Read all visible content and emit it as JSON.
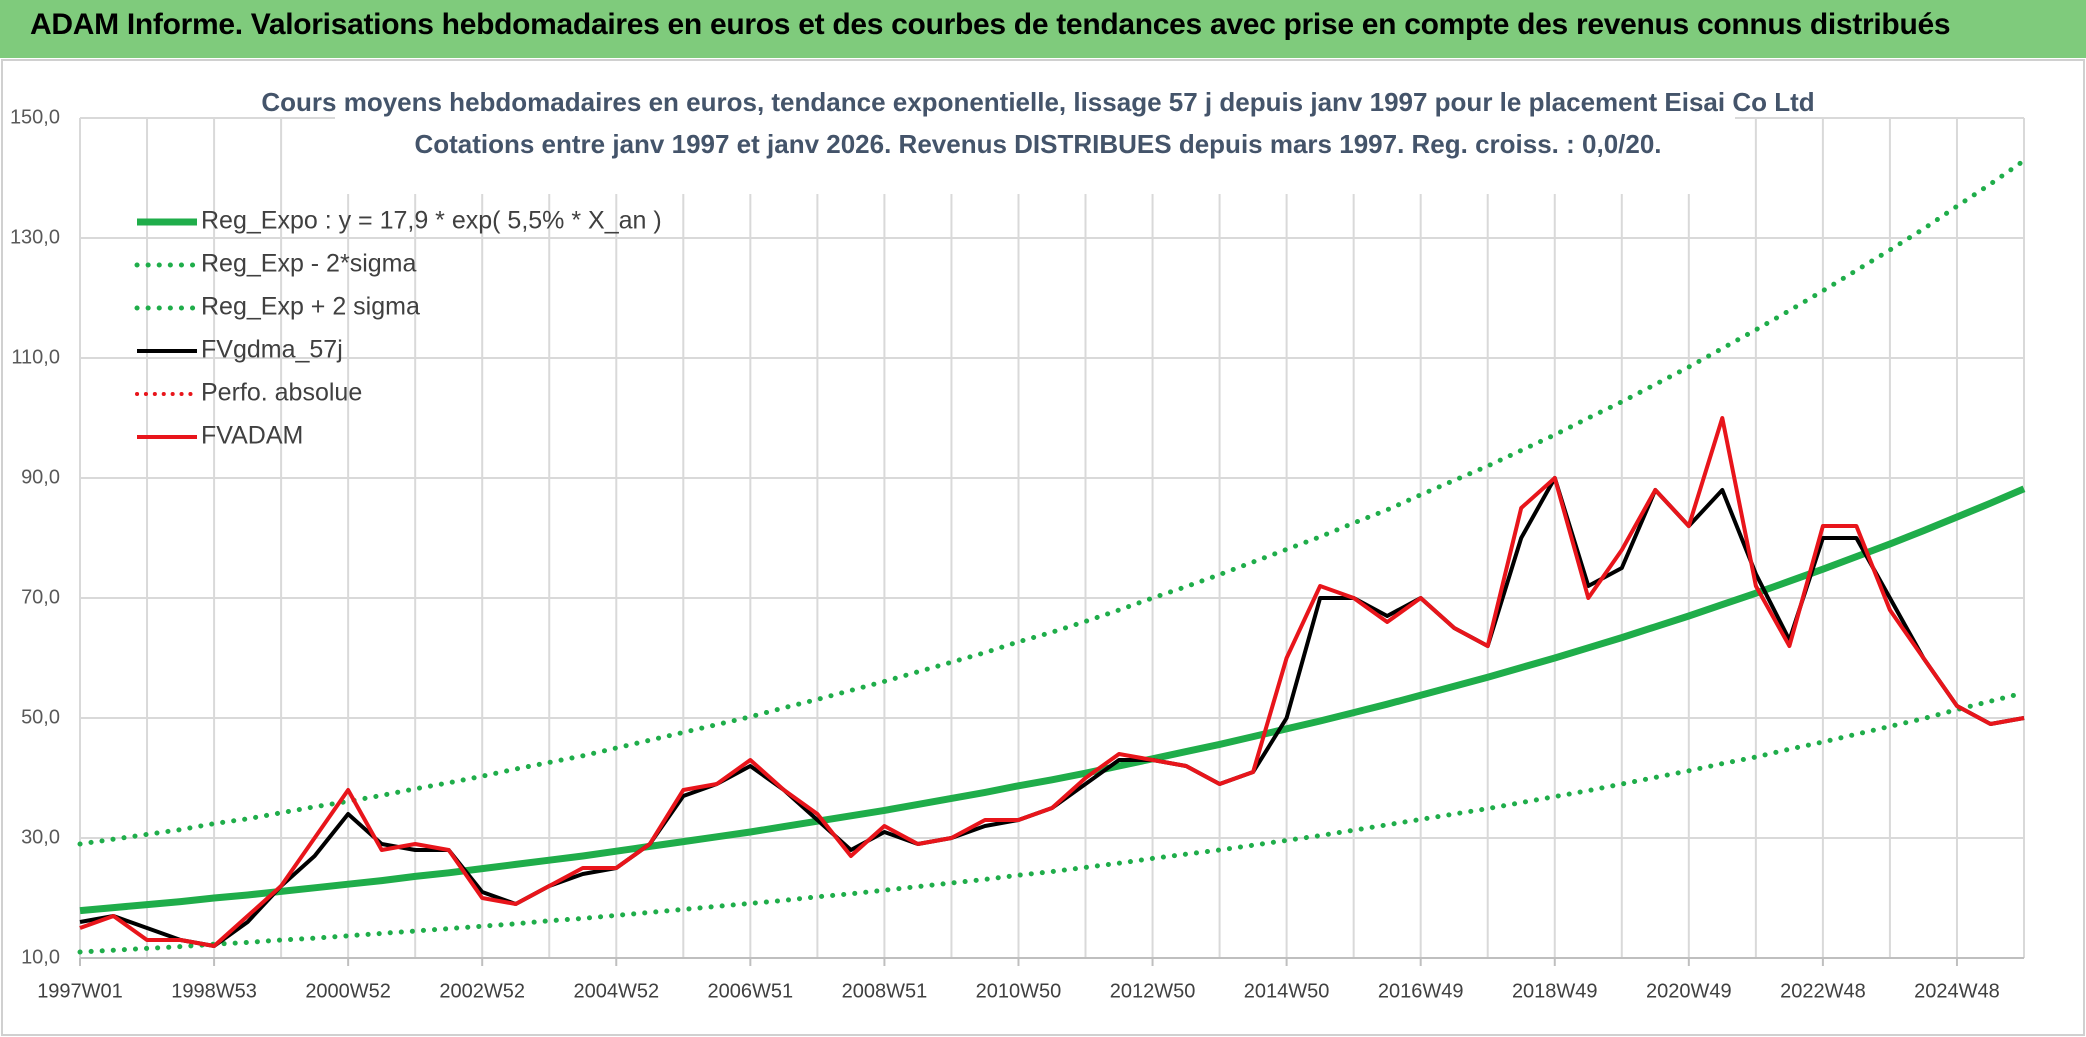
{
  "header": {
    "title": "ADAM Informe. Valorisations hebdomadaires en euros et des courbes de tendances avec prise en compte des revenus connus distribués"
  },
  "chart_data": {
    "type": "line",
    "title": "Cours moyens hebdomadaires en euros, tendance exponentielle, lissage 57 j depuis janv 1997 pour le placement Eisai Co Ltd",
    "subtitle": "Cotations entre janv 1997 et janv 2026. Revenus DISTRIBUES depuis mars 1997. Reg. croiss. : 0,0/20.",
    "categories": [
      "1997W01",
      null,
      null,
      null,
      "1998W53",
      null,
      null,
      null,
      "2000W52",
      null,
      null,
      null,
      "2002W52",
      null,
      null,
      null,
      "2004W52",
      null,
      null,
      null,
      "2006W51",
      null,
      null,
      null,
      "2008W51",
      null,
      null,
      null,
      "2010W50",
      null,
      null,
      null,
      "2012W50",
      null,
      null,
      null,
      "2014W50",
      null,
      null,
      null,
      "2016W49",
      null,
      null,
      null,
      "2018W49",
      null,
      null,
      null,
      "2020W49",
      null,
      null,
      null,
      "2022W48",
      null,
      null,
      null,
      "2024W48",
      null,
      null
    ],
    "ylim": [
      10,
      150
    ],
    "yticks": [
      {
        "value": 10,
        "label": "10,0"
      },
      {
        "value": 30,
        "label": "30,0"
      },
      {
        "value": 50,
        "label": "50,0"
      },
      {
        "value": 70,
        "label": "70,0"
      },
      {
        "value": 90,
        "label": "90,0"
      },
      {
        "value": 110,
        "label": "110,0"
      },
      {
        "value": 130,
        "label": "130,0"
      },
      {
        "value": 150,
        "label": "150,0"
      }
    ],
    "grid": true,
    "legend": "top-left",
    "series": [
      {
        "name": "Reg_Expo : y = 17,9 * exp( 5,5% *  X_an )",
        "color": "#1fad4a",
        "dash": "solid",
        "width": 7,
        "values": [
          17.9,
          18.4,
          18.9,
          19.4,
          20.0,
          20.5,
          21.1,
          21.7,
          22.3,
          22.9,
          23.6,
          24.2,
          24.9,
          25.6,
          26.3,
          27.0,
          27.8,
          28.6,
          29.4,
          30.2,
          31.0,
          31.9,
          32.8,
          33.7,
          34.6,
          35.6,
          36.6,
          37.6,
          38.7,
          39.7,
          40.8,
          42.0,
          43.2,
          44.4,
          45.6,
          46.9,
          48.2,
          49.5,
          50.9,
          52.3,
          53.8,
          55.3,
          56.8,
          58.4,
          60.0,
          61.7,
          63.4,
          65.2,
          67.0,
          68.9,
          70.8,
          72.8,
          74.8,
          76.9,
          79.0,
          81.2,
          83.5,
          85.8,
          88.2
        ]
      },
      {
        "name": "Reg_Exp - 2*sigma",
        "color": "#1fad4a",
        "dash": "dotted",
        "width": 5,
        "values": [
          11.0,
          11.3,
          11.6,
          11.9,
          12.3,
          12.6,
          13.0,
          13.3,
          13.7,
          14.1,
          14.5,
          14.9,
          15.3,
          15.7,
          16.2,
          16.6,
          17.1,
          17.6,
          18.1,
          18.6,
          19.1,
          19.6,
          20.2,
          20.7,
          21.3,
          21.9,
          22.5,
          23.1,
          23.8,
          24.4,
          25.1,
          25.8,
          26.6,
          27.3,
          28.0,
          28.8,
          29.6,
          30.4,
          31.3,
          32.2,
          33.1,
          34.0,
          34.9,
          35.9,
          36.9,
          37.9,
          39.0,
          40.1,
          41.2,
          42.4,
          43.5,
          44.8,
          46.0,
          47.3,
          48.6,
          49.9,
          51.4,
          52.8,
          54.2
        ]
      },
      {
        "name": "Reg_Exp + 2 sigma",
        "color": "#1fad4a",
        "dash": "dotted",
        "width": 5,
        "values": [
          29.0,
          29.8,
          30.6,
          31.4,
          32.4,
          33.2,
          34.2,
          35.2,
          36.1,
          37.1,
          38.2,
          39.2,
          40.3,
          41.5,
          42.6,
          43.7,
          45.0,
          46.3,
          47.6,
          48.9,
          50.2,
          51.7,
          53.1,
          54.6,
          56.1,
          57.7,
          59.3,
          60.9,
          62.7,
          64.3,
          66.1,
          68.0,
          70.0,
          71.9,
          73.9,
          76.0,
          78.1,
          80.2,
          82.5,
          84.7,
          87.2,
          89.6,
          92.0,
          94.6,
          97.2,
          100.0,
          102.7,
          105.6,
          108.5,
          111.6,
          114.7,
          117.9,
          121.2,
          124.6,
          128.0,
          131.5,
          135.3,
          139.0,
          142.9
        ]
      },
      {
        "name": "FVgdma_57j",
        "color": "#000000",
        "dash": "solid",
        "width": 4,
        "values": [
          16,
          17,
          15,
          13,
          12,
          16,
          22,
          27,
          34,
          29,
          28,
          28,
          21,
          19,
          22,
          24,
          25,
          29,
          37,
          39,
          42,
          38,
          33,
          28,
          31,
          29,
          30,
          32,
          33,
          35,
          39,
          43,
          43,
          42,
          39,
          41,
          50,
          70,
          70,
          67,
          70,
          65,
          62,
          80,
          90,
          72,
          75,
          88,
          82,
          88,
          74,
          63,
          80,
          80,
          70,
          60,
          52,
          49,
          50
        ]
      },
      {
        "name": "Perfo. absolue",
        "color": "#e8151b",
        "dash": "dotted",
        "width": 4,
        "values": [
          null,
          null,
          null,
          null,
          null,
          null,
          null,
          null,
          null,
          null,
          null,
          null,
          null,
          null,
          null,
          null,
          null,
          null,
          null,
          null,
          null,
          null,
          null,
          null,
          null,
          null,
          null,
          null,
          null,
          null,
          null,
          null,
          null,
          null,
          null,
          null,
          null,
          null,
          null,
          null,
          null,
          null,
          null,
          null,
          null,
          null,
          null,
          null,
          null,
          null,
          null,
          null,
          null,
          null,
          null,
          null,
          null,
          null,
          null
        ]
      },
      {
        "name": "FVADAM",
        "color": "#e8151b",
        "dash": "solid",
        "width": 4,
        "values": [
          15,
          17,
          13,
          13,
          12,
          17,
          22,
          30,
          38,
          28,
          29,
          28,
          20,
          19,
          22,
          25,
          25,
          29,
          38,
          39,
          43,
          38,
          34,
          27,
          32,
          29,
          30,
          33,
          33,
          35,
          40,
          44,
          43,
          42,
          39,
          41,
          60,
          72,
          70,
          66,
          70,
          65,
          62,
          85,
          90,
          70,
          78,
          88,
          82,
          100,
          72,
          62,
          82,
          82,
          68,
          60,
          52,
          49,
          50
        ]
      }
    ]
  }
}
